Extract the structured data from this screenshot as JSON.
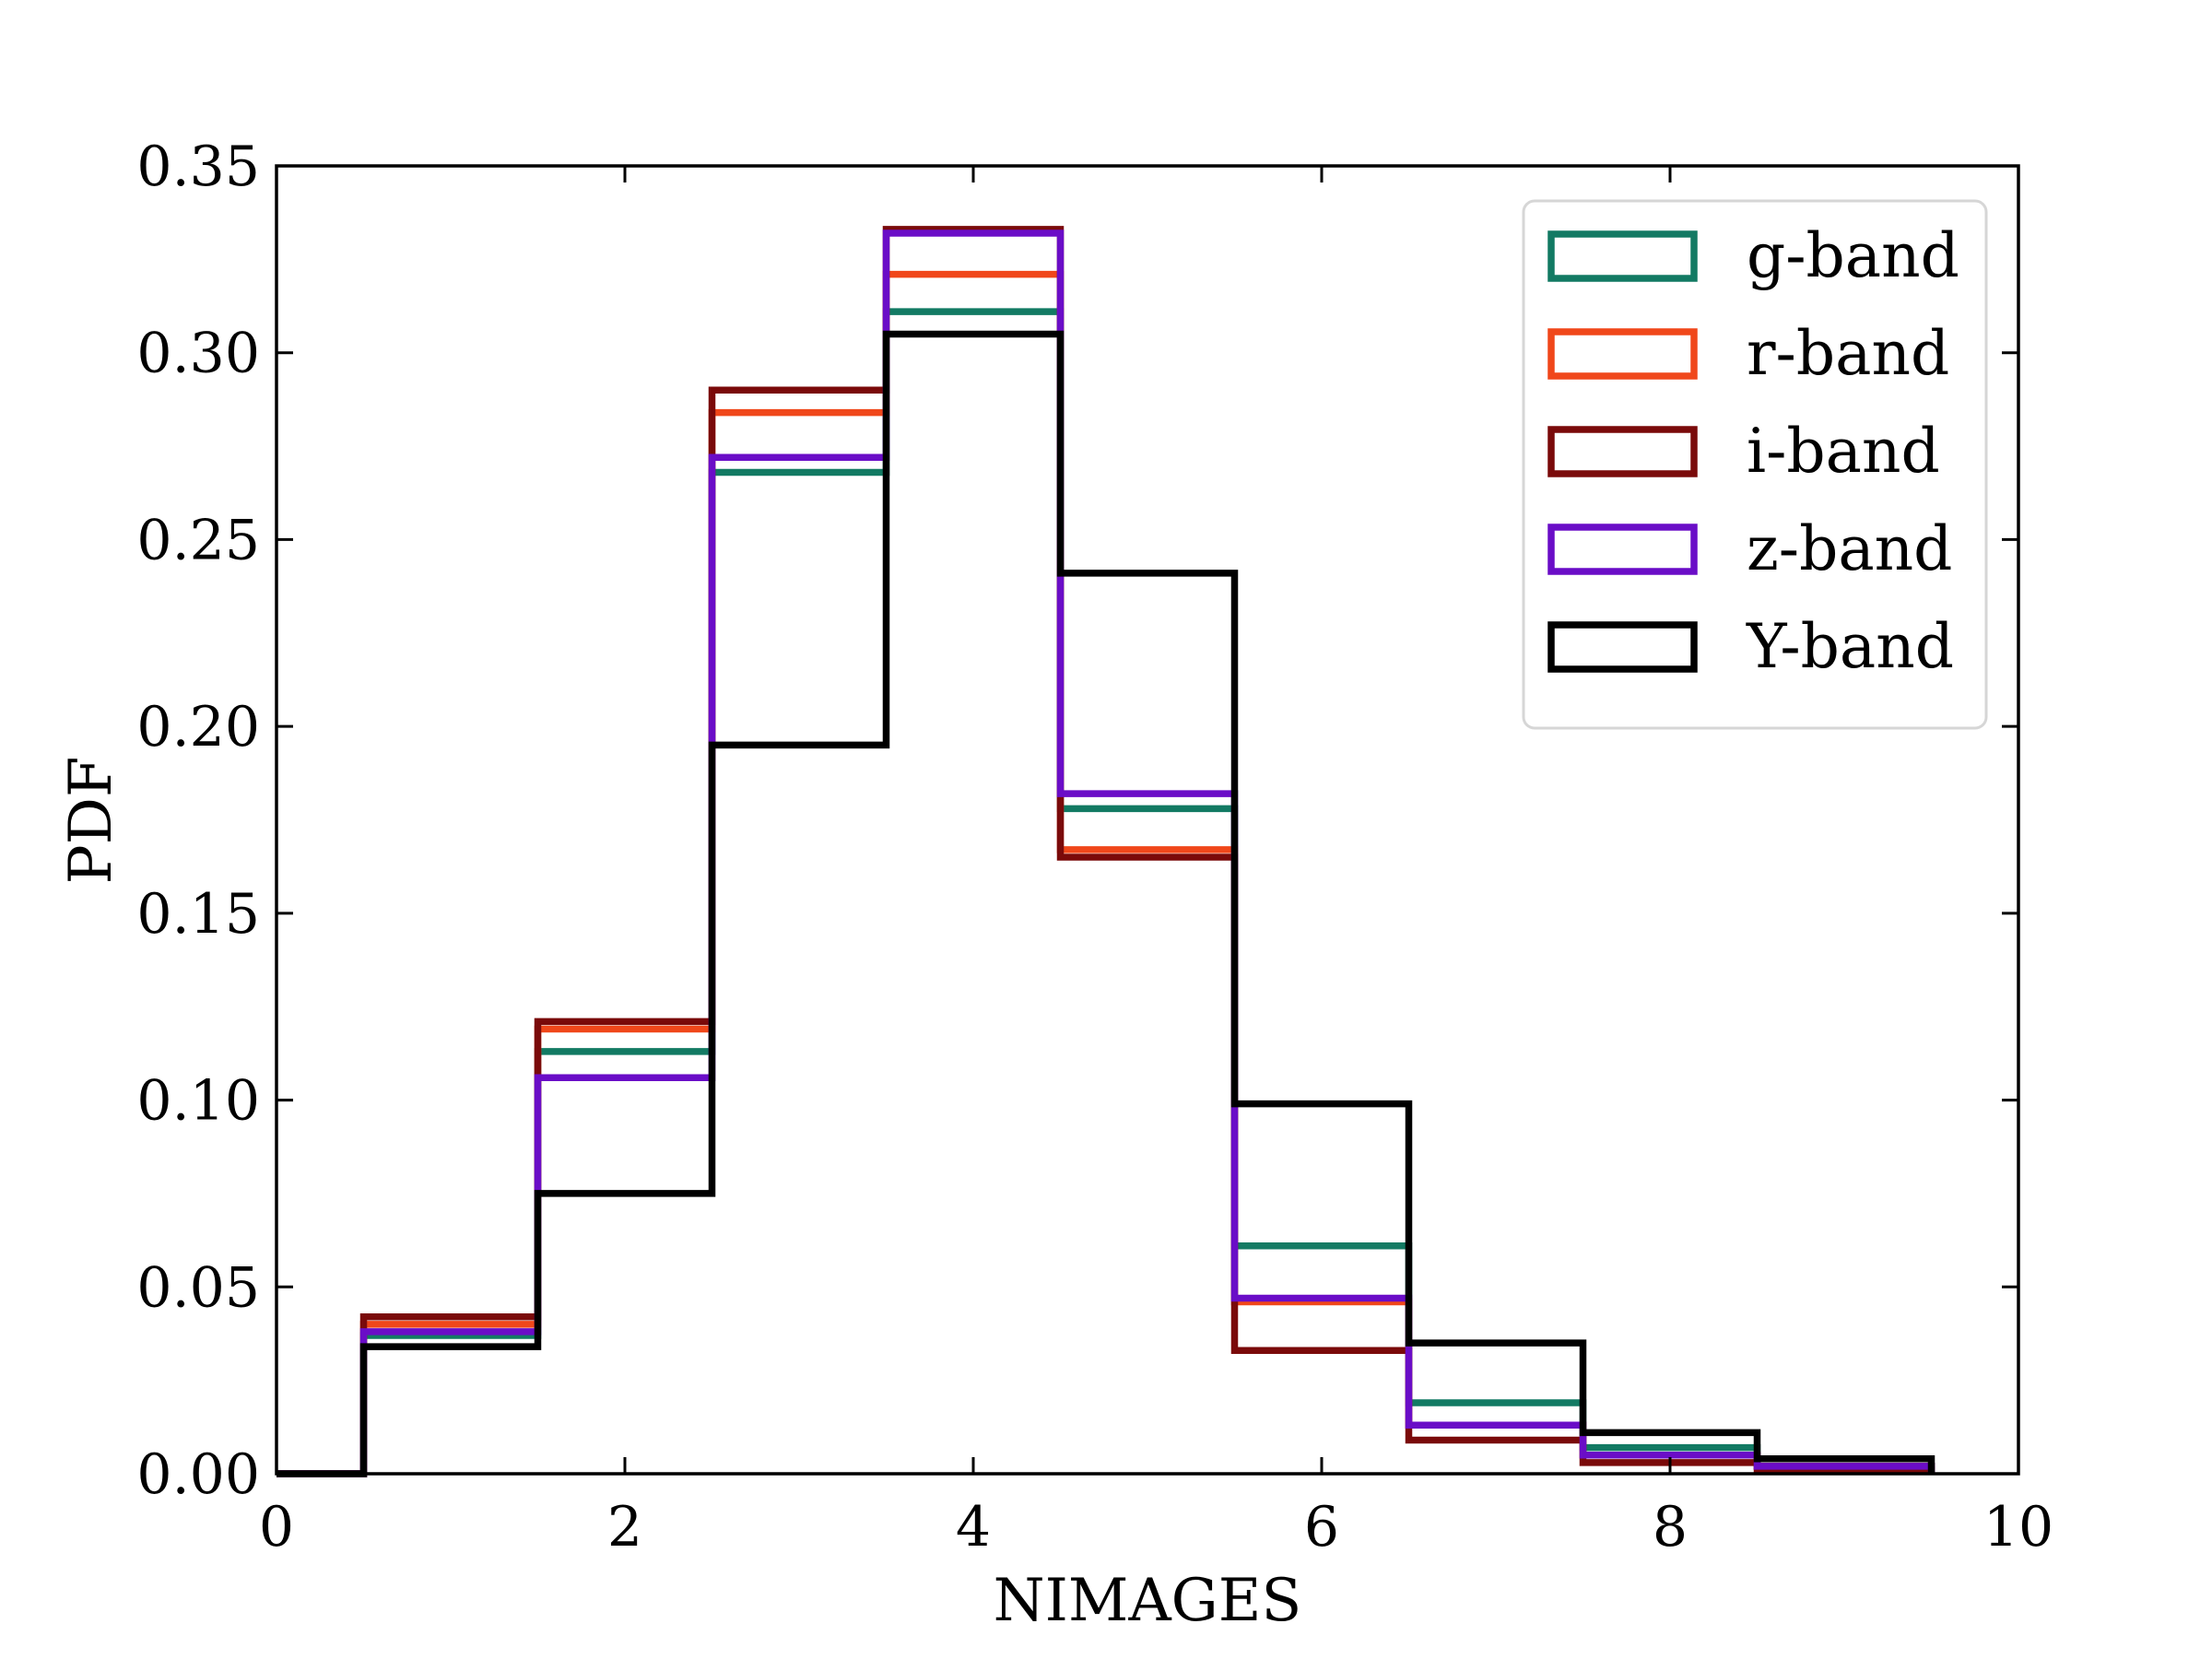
{
  "chart_data": {
    "type": "histogram-step",
    "xlabel": "NIMAGES",
    "ylabel": "PDF",
    "xlim": [
      0,
      10
    ],
    "ylim": [
      0,
      0.35
    ],
    "grid": false,
    "legend_position": "top-right",
    "x_ticks": [
      "0",
      "2",
      "4",
      "6",
      "8",
      "10"
    ],
    "y_ticks": [
      "0.00",
      "0.05",
      "0.10",
      "0.15",
      "0.20",
      "0.25",
      "0.30",
      "0.35"
    ],
    "bin_edges": [
      0.5,
      1.5,
      2.5,
      3.5,
      4.5,
      5.5,
      6.5,
      7.5,
      8.5,
      9.5
    ],
    "series": [
      {
        "name": "g-band",
        "color": "#127a63",
        "values": [
          0.037,
          0.113,
          0.268,
          0.311,
          0.178,
          0.061,
          0.019,
          0.007,
          0.002
        ]
      },
      {
        "name": "r-band",
        "color": "#f0471a",
        "values": [
          0.04,
          0.119,
          0.284,
          0.321,
          0.167,
          0.046,
          0.013,
          0.005,
          0.002
        ]
      },
      {
        "name": "i-band",
        "color": "#7a0a0a",
        "values": [
          0.042,
          0.121,
          0.29,
          0.333,
          0.165,
          0.033,
          0.009,
          0.003,
          0.001
        ]
      },
      {
        "name": "z-band",
        "color": "#6a0dc7",
        "values": [
          0.038,
          0.106,
          0.272,
          0.332,
          0.182,
          0.047,
          0.013,
          0.005,
          0.002
        ]
      },
      {
        "name": "Y-band",
        "color": "#000000",
        "values": [
          0.034,
          0.075,
          0.195,
          0.305,
          0.241,
          0.099,
          0.035,
          0.011,
          0.004
        ]
      }
    ]
  }
}
